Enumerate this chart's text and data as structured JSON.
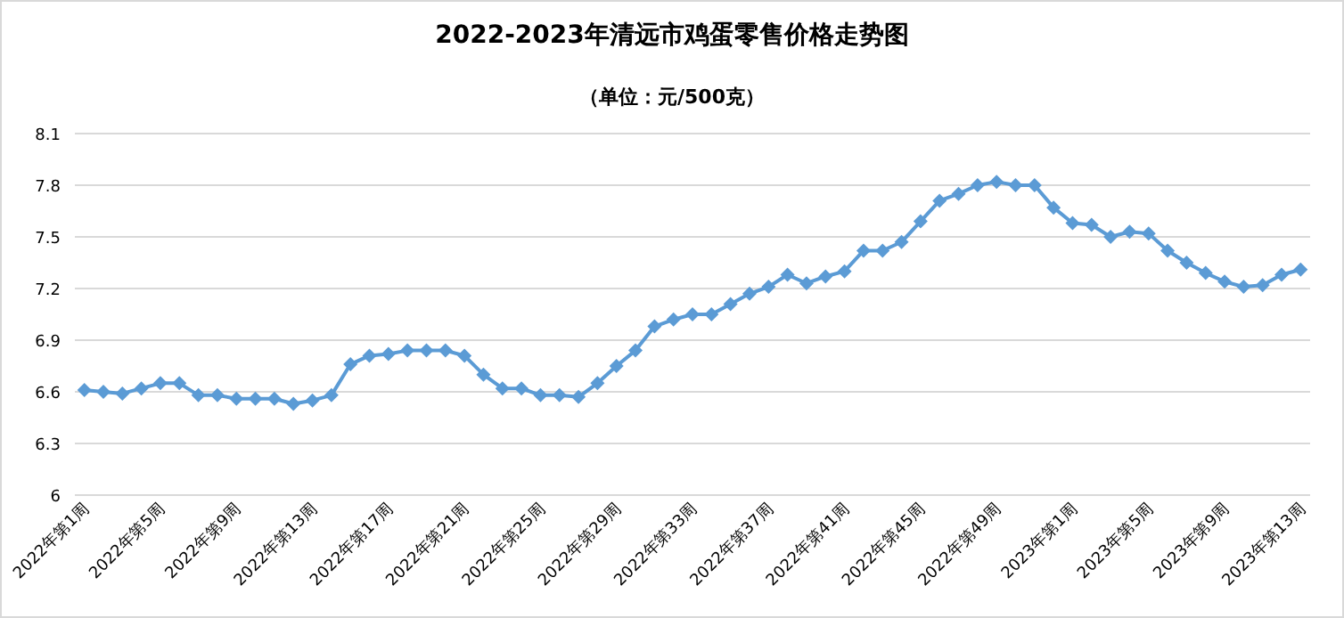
{
  "chart_data": {
    "type": "line",
    "title": "2022-2023年清远市鸡蛋零售价格走势图",
    "subtitle": "（单位：元/500克）",
    "categories": [
      "2022年第1周",
      null,
      null,
      null,
      "2022年第5周",
      null,
      null,
      null,
      "2022年第9周",
      null,
      null,
      null,
      "2022年第13周",
      null,
      null,
      null,
      "2022年第17周",
      null,
      null,
      null,
      "2022年第21周",
      null,
      null,
      null,
      "2022年第25周",
      null,
      null,
      null,
      "2022年第29周",
      null,
      null,
      null,
      "2022年第33周",
      null,
      null,
      null,
      "2022年第37周",
      null,
      null,
      null,
      "2022年第41周",
      null,
      null,
      null,
      "2022年第45周",
      null,
      null,
      null,
      "2022年第49周",
      null,
      null,
      null,
      "2023年第1周",
      null,
      null,
      null,
      "2023年第5周",
      null,
      null,
      null,
      "2023年第9周",
      null,
      null,
      null,
      "2023年第13周"
    ],
    "series": [
      {
        "color": "#5b9bd5",
        "values": [
          6.61,
          6.6,
          6.59,
          6.62,
          6.65,
          6.65,
          6.58,
          6.58,
          6.56,
          6.56,
          6.56,
          6.53,
          6.55,
          6.58,
          6.76,
          6.81,
          6.82,
          6.84,
          6.84,
          6.84,
          6.81,
          6.7,
          6.62,
          6.62,
          6.58,
          6.58,
          6.57,
          6.65,
          6.75,
          6.84,
          6.98,
          7.02,
          7.05,
          7.05,
          7.11,
          7.17,
          7.21,
          7.28,
          7.23,
          7.27,
          7.3,
          7.42,
          7.42,
          7.47,
          7.59,
          7.71,
          7.75,
          7.8,
          7.82,
          7.8,
          7.8,
          7.67,
          7.58,
          7.57,
          7.5,
          7.53,
          7.52,
          7.42,
          7.35,
          7.29,
          7.24,
          7.21,
          7.22,
          7.28,
          7.31
        ]
      }
    ],
    "ylim": [
      6,
      8.1
    ],
    "yticks": [
      6,
      6.3,
      6.6,
      6.9,
      7.2,
      7.5,
      7.8,
      8.1
    ],
    "grid": "y",
    "marker": "diamond",
    "line_style": "solid"
  }
}
